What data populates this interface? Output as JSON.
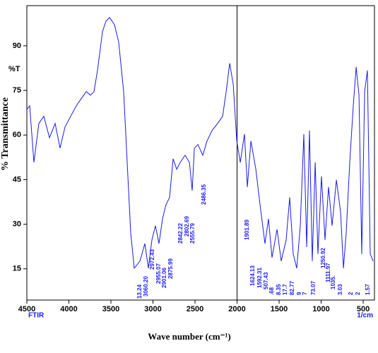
{
  "chart_data": {
    "type": "line",
    "ylabel": "% Transmittance",
    "yunit": "%T",
    "xlabel": "Wave number (cm⁻¹)",
    "xunit": "1/cm",
    "footer": "FTIR",
    "xlim": [
      4500,
      366
    ],
    "ylim": [
      4.5,
      103.5
    ],
    "xticks": [
      4500,
      4000,
      3500,
      3000,
      2500,
      2000,
      1500,
      1000,
      500
    ],
    "yticks": [
      15,
      30,
      45,
      60,
      75,
      90
    ],
    "vline": 2000,
    "series": [
      {
        "color": "#1a1aee",
        "x": [
          4500,
          4466,
          4416,
          4357,
          4298,
          4231,
          4164,
          4105,
          4046,
          3979,
          3912,
          3853,
          3794,
          3744,
          3702,
          3660,
          3601,
          3559,
          3517,
          3458,
          3408,
          3349,
          3307,
          3265,
          3223,
          3155,
          3097,
          3055,
          3013,
          2971,
          2929,
          2887,
          2845,
          2803,
          2761,
          2718,
          2676,
          2618,
          2567,
          2534,
          2508,
          2466,
          2408,
          2357,
          2298,
          2231,
          2172,
          2130,
          2088,
          2046,
          2004,
          1962,
          1912,
          1878,
          1836,
          1777,
          1727,
          1668,
          1626,
          1584,
          1525,
          1475,
          1416,
          1374,
          1332,
          1290,
          1248,
          1206,
          1172,
          1139,
          1105,
          1071,
          1038,
          996,
          954,
          912,
          870,
          819,
          769,
          735,
          702,
          660,
          618,
          584,
          550,
          517,
          483,
          450,
          416,
          382
        ],
        "values": [
          68.6,
          69.8,
          50.8,
          63.9,
          66.3,
          59.1,
          63.9,
          55.6,
          62.7,
          66.3,
          69.8,
          72.2,
          74.6,
          73.4,
          74.6,
          81.7,
          94.7,
          98.3,
          99.5,
          97.1,
          91.2,
          74.6,
          50.8,
          27.1,
          15.2,
          17.6,
          23.5,
          15.2,
          24.7,
          29.5,
          23.5,
          31.8,
          36.6,
          39.0,
          52.0,
          48.5,
          50.8,
          53.2,
          50.8,
          41.3,
          55.6,
          56.8,
          53.2,
          58.0,
          61.5,
          63.9,
          66.3,
          74.6,
          84.1,
          77.0,
          58.0,
          50.8,
          60.3,
          42.5,
          58.0,
          48.5,
          36.6,
          23.5,
          31.8,
          18.8,
          28.3,
          17.6,
          24.7,
          39.0,
          20.0,
          15.2,
          29.5,
          60.3,
          22.3,
          61.5,
          17.6,
          50.8,
          20.0,
          46.1,
          24.7,
          42.5,
          29.5,
          44.9,
          34.2,
          15.2,
          27.1,
          50.8,
          69.8,
          82.9,
          73.4,
          20.0,
          74.6,
          81.7,
          20.0,
          17.6
        ]
      }
    ],
    "annotations": [
      "13.24",
      "3060.20",
      "2972.43",
      "2955.07",
      "2901.06",
      "2875.99",
      "2842.22",
      "2802.69",
      "2555.79",
      "2486.35",
      "1901.89",
      "1624.13",
      "1592.31",
      "507.43",
      ".68",
      "8.35",
      "17.7",
      "82.77",
      "9",
      "7",
      "73.07",
      "1250.92",
      "1111.97",
      "1035.",
      "3.03",
      "2",
      "2",
      "1.57"
    ]
  }
}
